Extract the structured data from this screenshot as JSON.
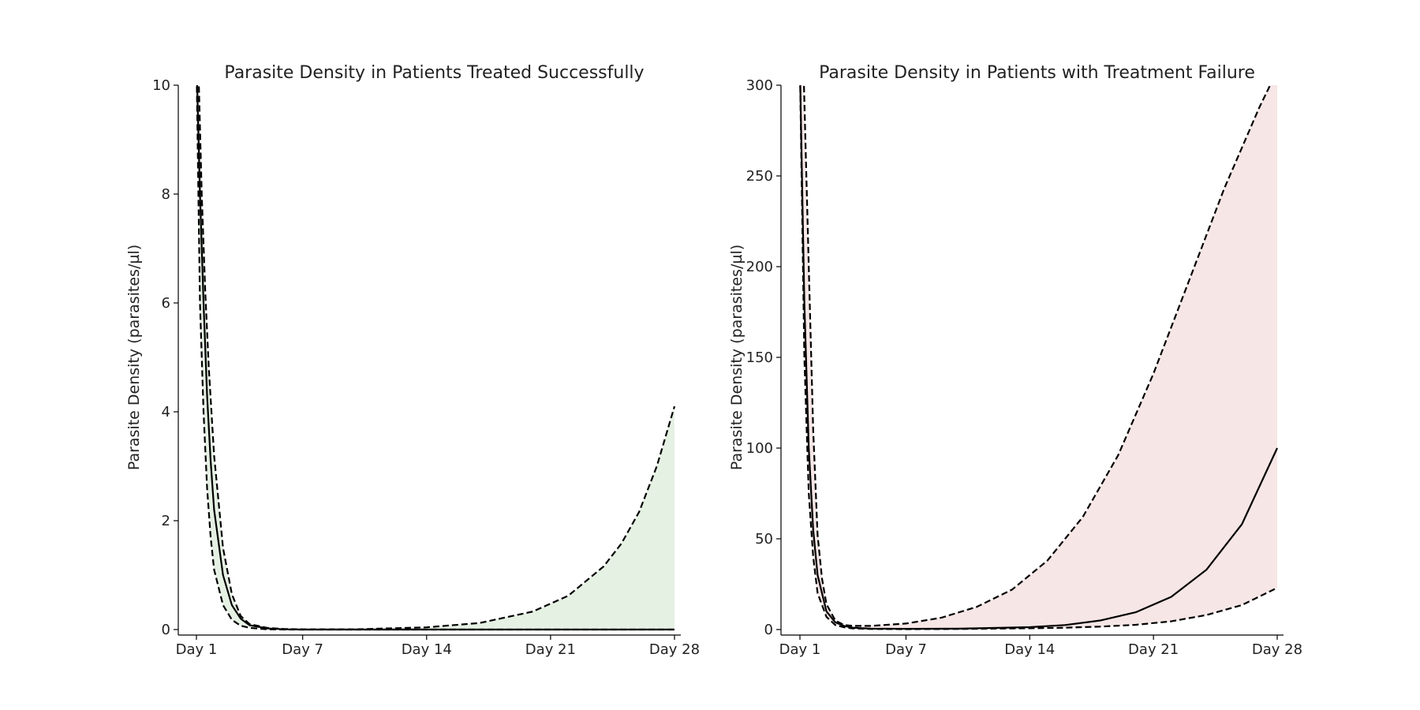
{
  "chart_data": [
    {
      "type": "line",
      "title": "Parasite Density in Patients Treated Successfully",
      "xlabel": "",
      "ylabel": "Parasite Density (parasites/µl)",
      "xlim": [
        0,
        28
      ],
      "ylim": [
        0,
        10
      ],
      "x_ticks": [
        1,
        7,
        14,
        21,
        28
      ],
      "x_tick_labels": [
        "Day 1",
        "Day 7",
        "Day 14",
        "Day 21",
        "Day 28"
      ],
      "y_ticks": [
        0,
        2,
        4,
        6,
        8,
        10
      ],
      "y_tick_labels": [
        "0",
        "2",
        "4",
        "6",
        "8",
        "10"
      ],
      "band_color": "#e5f1e3",
      "series": [
        {
          "role": "median",
          "style": "solid",
          "x": [
            1,
            1.2,
            1.4,
            1.6,
            1.8,
            2,
            2.5,
            3,
            3.5,
            4,
            5,
            6,
            7,
            10,
            14,
            21,
            28
          ],
          "y": [
            10.5,
            8.0,
            6.0,
            4.3,
            3.1,
            2.2,
            1.0,
            0.45,
            0.2,
            0.08,
            0.02,
            0.005,
            0,
            0,
            0,
            0,
            0
          ]
        },
        {
          "role": "lower",
          "style": "dashed",
          "x": [
            1,
            1.2,
            1.4,
            1.6,
            1.8,
            2,
            2.5,
            3,
            3.5,
            4,
            5,
            6,
            7,
            10,
            14,
            21,
            28
          ],
          "y": [
            10.5,
            6.0,
            4.0,
            2.6,
            1.7,
            1.1,
            0.45,
            0.18,
            0.07,
            0.03,
            0.005,
            0,
            0,
            0,
            0,
            0,
            0
          ]
        },
        {
          "role": "upper",
          "style": "dashed",
          "x": [
            1.1,
            1.3,
            1.5,
            1.7,
            2,
            2.5,
            3,
            3.5,
            4,
            5,
            6,
            7,
            10,
            14,
            17,
            20,
            22,
            24,
            25,
            26,
            27,
            28
          ],
          "y": [
            10.5,
            8.0,
            6.2,
            4.8,
            3.2,
            1.5,
            0.65,
            0.25,
            0.1,
            0.03,
            0.01,
            0.005,
            0.005,
            0.04,
            0.12,
            0.33,
            0.62,
            1.16,
            1.58,
            2.16,
            3.0,
            4.1
          ]
        }
      ]
    },
    {
      "type": "line",
      "title": "Parasite Density in Patients with Treatment Failure",
      "xlabel": "",
      "ylabel": "Parasite Density (parasites/µl)",
      "xlim": [
        0,
        28
      ],
      "ylim": [
        0,
        300
      ],
      "x_ticks": [
        1,
        7,
        14,
        21,
        28
      ],
      "x_tick_labels": [
        "Day 1",
        "Day 7",
        "Day 14",
        "Day 21",
        "Day 28"
      ],
      "y_ticks": [
        0,
        50,
        100,
        150,
        200,
        250,
        300
      ],
      "y_tick_labels": [
        "0",
        "50",
        "100",
        "150",
        "200",
        "250",
        "300"
      ],
      "band_color": "#f6e6e5",
      "series": [
        {
          "role": "median",
          "style": "solid",
          "x": [
            1,
            1.25,
            1.5,
            1.75,
            2,
            2.5,
            3,
            3.5,
            4,
            5,
            7,
            10,
            14,
            16,
            18,
            20,
            22,
            24,
            26,
            28
          ],
          "y": [
            310,
            180,
            100,
            55,
            30,
            10,
            4,
            2,
            1,
            0.5,
            0.4,
            0.5,
            1.3,
            2.5,
            5,
            9.5,
            18,
            33,
            58,
            100
          ]
        },
        {
          "role": "lower",
          "style": "dashed",
          "x": [
            1,
            1.25,
            1.5,
            1.75,
            2,
            2.5,
            3,
            3.5,
            4,
            5,
            7,
            10,
            14,
            16,
            18,
            20,
            22,
            24,
            26,
            28
          ],
          "y": [
            310,
            150,
            75,
            40,
            20,
            7,
            2.5,
            1.2,
            0.6,
            0.3,
            0.2,
            0.3,
            0.7,
            1.0,
            1.6,
            2.6,
            4.5,
            8,
            13.5,
            23
          ]
        },
        {
          "role": "upper",
          "style": "dashed",
          "x": [
            1.2,
            1.5,
            1.75,
            2,
            2.25,
            2.5,
            3,
            3.5,
            4,
            5,
            7,
            9,
            11,
            13,
            15,
            17,
            19,
            21,
            23,
            25,
            27,
            28
          ],
          "y": [
            310,
            200,
            110,
            52,
            28,
            14,
            5,
            2.5,
            2,
            2,
            3.3,
            6.5,
            12.5,
            22,
            38,
            62,
            96,
            141,
            192,
            243,
            288,
            308
          ]
        }
      ]
    }
  ]
}
